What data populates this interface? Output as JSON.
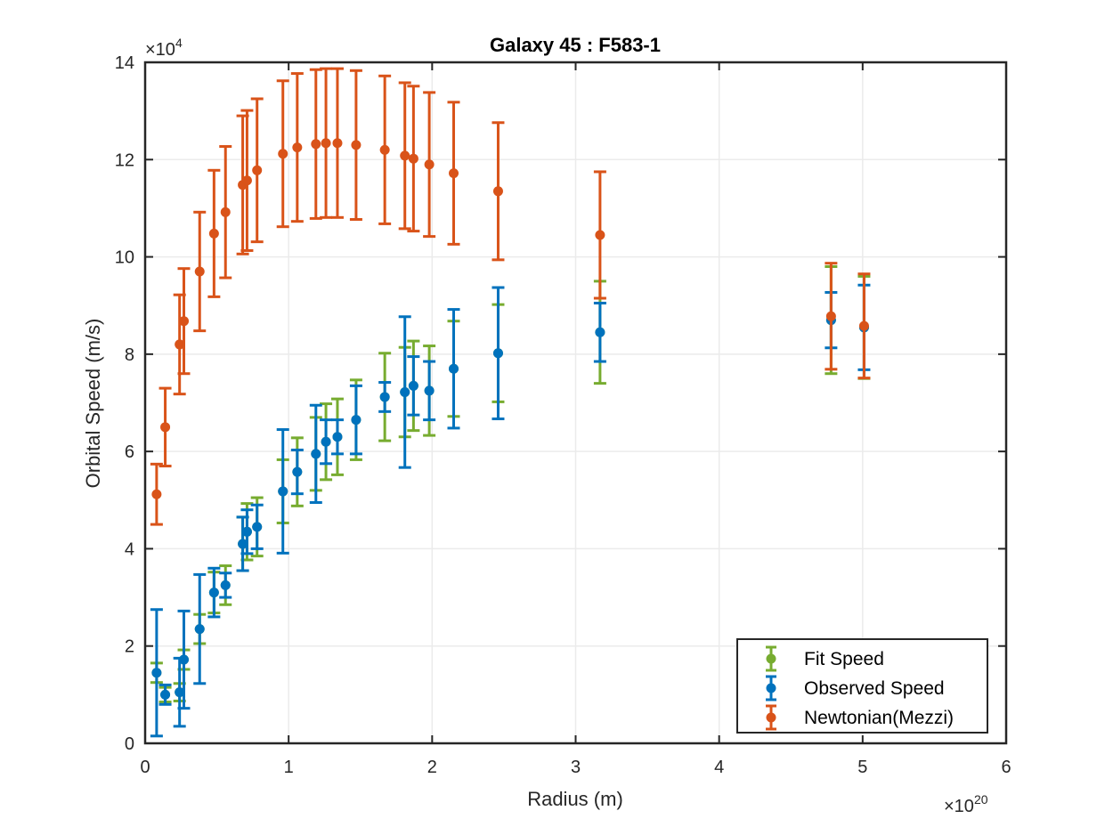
{
  "chart_data": {
    "type": "scatter",
    "title": "Galaxy 45 : F583-1",
    "xlabel": "Radius (m)",
    "ylabel": "Orbital Speed (m/s)",
    "x_exponent_base": "×10",
    "x_exponent_power": "20",
    "y_exponent_base": "×10",
    "y_exponent_power": "4",
    "xlim": [
      0,
      6
    ],
    "ylim": [
      0,
      14
    ],
    "xticks": [
      0,
      1,
      2,
      3,
      4,
      5,
      6
    ],
    "yticks": [
      0,
      2,
      4,
      6,
      8,
      10,
      12,
      14
    ],
    "grid": true,
    "legend_position": "bottom-right",
    "series": [
      {
        "name": "Fit Speed",
        "color": "#77AC30",
        "points": [
          {
            "x": 0.08,
            "y": 1.45,
            "err": 0.2
          },
          {
            "x": 0.14,
            "y": 1.0,
            "err": 0.15
          },
          {
            "x": 0.24,
            "y": 1.05,
            "err": 0.18
          },
          {
            "x": 0.27,
            "y": 1.72,
            "err": 0.2
          },
          {
            "x": 0.38,
            "y": 2.35,
            "err": 0.3
          },
          {
            "x": 0.48,
            "y": 3.1,
            "err": 0.42
          },
          {
            "x": 0.56,
            "y": 3.25,
            "err": 0.4
          },
          {
            "x": 0.68,
            "y": 4.1,
            "err": 0.55
          },
          {
            "x": 0.71,
            "y": 4.35,
            "err": 0.58
          },
          {
            "x": 0.78,
            "y": 4.45,
            "err": 0.6
          },
          {
            "x": 0.96,
            "y": 5.18,
            "err": 0.65
          },
          {
            "x": 1.06,
            "y": 5.58,
            "err": 0.7
          },
          {
            "x": 1.19,
            "y": 5.95,
            "err": 0.75
          },
          {
            "x": 1.26,
            "y": 6.2,
            "err": 0.78
          },
          {
            "x": 1.34,
            "y": 6.3,
            "err": 0.78
          },
          {
            "x": 1.47,
            "y": 6.65,
            "err": 0.82
          },
          {
            "x": 1.67,
            "y": 7.12,
            "err": 0.9
          },
          {
            "x": 1.81,
            "y": 7.22,
            "err": 0.92
          },
          {
            "x": 1.87,
            "y": 7.35,
            "err": 0.92
          },
          {
            "x": 1.98,
            "y": 7.25,
            "err": 0.92
          },
          {
            "x": 2.15,
            "y": 7.7,
            "err": 0.98
          },
          {
            "x": 2.46,
            "y": 8.02,
            "err": 1.0
          },
          {
            "x": 3.17,
            "y": 8.45,
            "err": 1.05
          },
          {
            "x": 4.78,
            "y": 8.7,
            "err": 1.1
          },
          {
            "x": 5.01,
            "y": 8.55,
            "err": 1.05
          }
        ]
      },
      {
        "name": "Observed Speed",
        "color": "#0072BD",
        "points": [
          {
            "x": 0.08,
            "y": 1.45,
            "err": 1.3
          },
          {
            "x": 0.14,
            "y": 1.0,
            "err": 0.2
          },
          {
            "x": 0.24,
            "y": 1.05,
            "err": 0.7
          },
          {
            "x": 0.27,
            "y": 1.72,
            "err": 1.0
          },
          {
            "x": 0.38,
            "y": 2.35,
            "err": 1.12
          },
          {
            "x": 0.48,
            "y": 3.1,
            "err": 0.5
          },
          {
            "x": 0.56,
            "y": 3.25,
            "err": 0.25
          },
          {
            "x": 0.68,
            "y": 4.1,
            "err": 0.55
          },
          {
            "x": 0.71,
            "y": 4.35,
            "err": 0.45
          },
          {
            "x": 0.78,
            "y": 4.45,
            "err": 0.45
          },
          {
            "x": 0.96,
            "y": 5.18,
            "err": 1.27
          },
          {
            "x": 1.06,
            "y": 5.58,
            "err": 0.45
          },
          {
            "x": 1.19,
            "y": 5.95,
            "err": 1.0
          },
          {
            "x": 1.26,
            "y": 6.2,
            "err": 0.45
          },
          {
            "x": 1.34,
            "y": 6.3,
            "err": 0.35
          },
          {
            "x": 1.47,
            "y": 6.65,
            "err": 0.7
          },
          {
            "x": 1.67,
            "y": 7.12,
            "err": 0.3
          },
          {
            "x": 1.81,
            "y": 7.22,
            "err": 1.55
          },
          {
            "x": 1.87,
            "y": 7.35,
            "err": 0.6
          },
          {
            "x": 1.98,
            "y": 7.25,
            "err": 0.6
          },
          {
            "x": 2.15,
            "y": 7.7,
            "err": 1.22
          },
          {
            "x": 2.46,
            "y": 8.02,
            "err": 1.35
          },
          {
            "x": 3.17,
            "y": 8.45,
            "err": 0.6
          },
          {
            "x": 4.78,
            "y": 8.7,
            "err": 0.57
          },
          {
            "x": 5.01,
            "y": 8.55,
            "err": 0.87
          }
        ]
      },
      {
        "name": "Newtonian(Mezzi)",
        "color": "#D95319",
        "points": [
          {
            "x": 0.08,
            "y": 5.12,
            "err": 0.62
          },
          {
            "x": 0.14,
            "y": 6.5,
            "err": 0.8
          },
          {
            "x": 0.24,
            "y": 8.2,
            "err": 1.02
          },
          {
            "x": 0.27,
            "y": 8.68,
            "err": 1.08
          },
          {
            "x": 0.38,
            "y": 9.7,
            "err": 1.22
          },
          {
            "x": 0.48,
            "y": 10.48,
            "err": 1.3
          },
          {
            "x": 0.56,
            "y": 10.92,
            "err": 1.35
          },
          {
            "x": 0.68,
            "y": 11.48,
            "err": 1.42
          },
          {
            "x": 0.71,
            "y": 11.57,
            "err": 1.44
          },
          {
            "x": 0.78,
            "y": 11.78,
            "err": 1.47
          },
          {
            "x": 0.96,
            "y": 12.12,
            "err": 1.5
          },
          {
            "x": 1.06,
            "y": 12.25,
            "err": 1.52
          },
          {
            "x": 1.19,
            "y": 12.32,
            "err": 1.53
          },
          {
            "x": 1.26,
            "y": 12.34,
            "err": 1.53
          },
          {
            "x": 1.34,
            "y": 12.34,
            "err": 1.53
          },
          {
            "x": 1.47,
            "y": 12.3,
            "err": 1.53
          },
          {
            "x": 1.67,
            "y": 12.2,
            "err": 1.52
          },
          {
            "x": 1.81,
            "y": 12.08,
            "err": 1.5
          },
          {
            "x": 1.87,
            "y": 12.02,
            "err": 1.49
          },
          {
            "x": 1.98,
            "y": 11.9,
            "err": 1.48
          },
          {
            "x": 2.15,
            "y": 11.72,
            "err": 1.46
          },
          {
            "x": 2.46,
            "y": 11.35,
            "err": 1.41
          },
          {
            "x": 3.17,
            "y": 10.45,
            "err": 1.3
          },
          {
            "x": 4.78,
            "y": 8.78,
            "err": 1.09
          },
          {
            "x": 5.01,
            "y": 8.58,
            "err": 1.07
          }
        ]
      }
    ]
  }
}
